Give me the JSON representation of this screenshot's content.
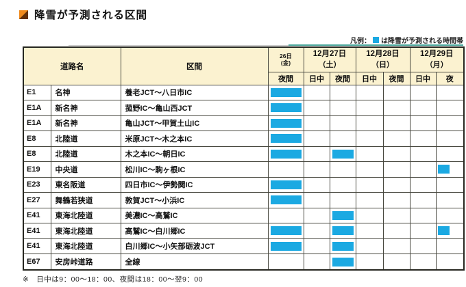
{
  "page": {
    "title": "降雪が予測される区間",
    "legend_prefix": "凡例：",
    "legend_suffix": "は降雪が予測される時間帯",
    "footnote": "※　日中は9：00～18：00、夜間は18：00～翌9：00"
  },
  "colors": {
    "bar": "#1BA9E2",
    "header_bg": "#FBF2D0",
    "grid": "#45453C",
    "legend_line": "#4AA79B"
  },
  "table": {
    "road_header": "道路名",
    "section_header": "区間",
    "date_groups": [
      {
        "date": "26日",
        "day": "(金)",
        "subs": [
          "夜間"
        ]
      },
      {
        "date": "12月27日",
        "day": "（土）",
        "subs": [
          "日中",
          "夜間"
        ]
      },
      {
        "date": "12月28日",
        "day": "（日）",
        "subs": [
          "日中",
          "夜間"
        ]
      },
      {
        "date": "12月29日",
        "day": "（月）",
        "subs": [
          "日中",
          "夜"
        ]
      }
    ],
    "rows": [
      {
        "code": "E1",
        "road": "名神",
        "section": "養老JCT～八日市IC",
        "cells": [
          1,
          0,
          0,
          0,
          0,
          0,
          0
        ]
      },
      {
        "code": "E1A",
        "road": "新名神",
        "section": "菰野IC～亀山西JCT",
        "cells": [
          1,
          0,
          0,
          0,
          0,
          0,
          0
        ]
      },
      {
        "code": "E1A",
        "road": "新名神",
        "section": "亀山JCT～甲賀土山IC",
        "cells": [
          1,
          0,
          0,
          0,
          0,
          0,
          0
        ]
      },
      {
        "code": "E8",
        "road": "北陸道",
        "section": "米原JCT～木之本IC",
        "cells": [
          1,
          0,
          0,
          0,
          0,
          0,
          0
        ]
      },
      {
        "code": "E8",
        "road": "北陸道",
        "section": "木之本IC～朝日IC",
        "cells": [
          1,
          0,
          1,
          0,
          0,
          0,
          0
        ]
      },
      {
        "code": "E19",
        "road": "中央道",
        "section": "松川IC～駒ヶ根IC",
        "cells": [
          0,
          0,
          0,
          0,
          0,
          0,
          0.5
        ]
      },
      {
        "code": "E23",
        "road": "東名阪道",
        "section": "四日市IC～伊勢関IC",
        "cells": [
          1,
          0,
          0,
          0,
          0,
          0,
          0
        ]
      },
      {
        "code": "E27",
        "road": "舞鶴若狭道",
        "section": "敦賀JCT～小浜IC",
        "cells": [
          1,
          0,
          0,
          0,
          0,
          0,
          0
        ]
      },
      {
        "code": "E41",
        "road": "東海北陸道",
        "section": "美濃IC～高鷲IC",
        "cells": [
          0,
          0,
          1,
          0,
          0,
          0,
          0
        ]
      },
      {
        "code": "E41",
        "road": "東海北陸道",
        "section": "高鷲IC～白川郷IC",
        "cells": [
          1,
          0,
          1,
          0,
          0,
          0,
          0.5
        ]
      },
      {
        "code": "E41",
        "road": "東海北陸道",
        "section": "白川郷IC～小矢部砺波JCT",
        "cells": [
          1,
          0,
          1,
          0,
          0,
          0,
          0
        ]
      },
      {
        "code": "E67",
        "road": "安房峠道路",
        "section": "全線",
        "cells": [
          0,
          0,
          1,
          0,
          0,
          0,
          0
        ]
      }
    ]
  }
}
